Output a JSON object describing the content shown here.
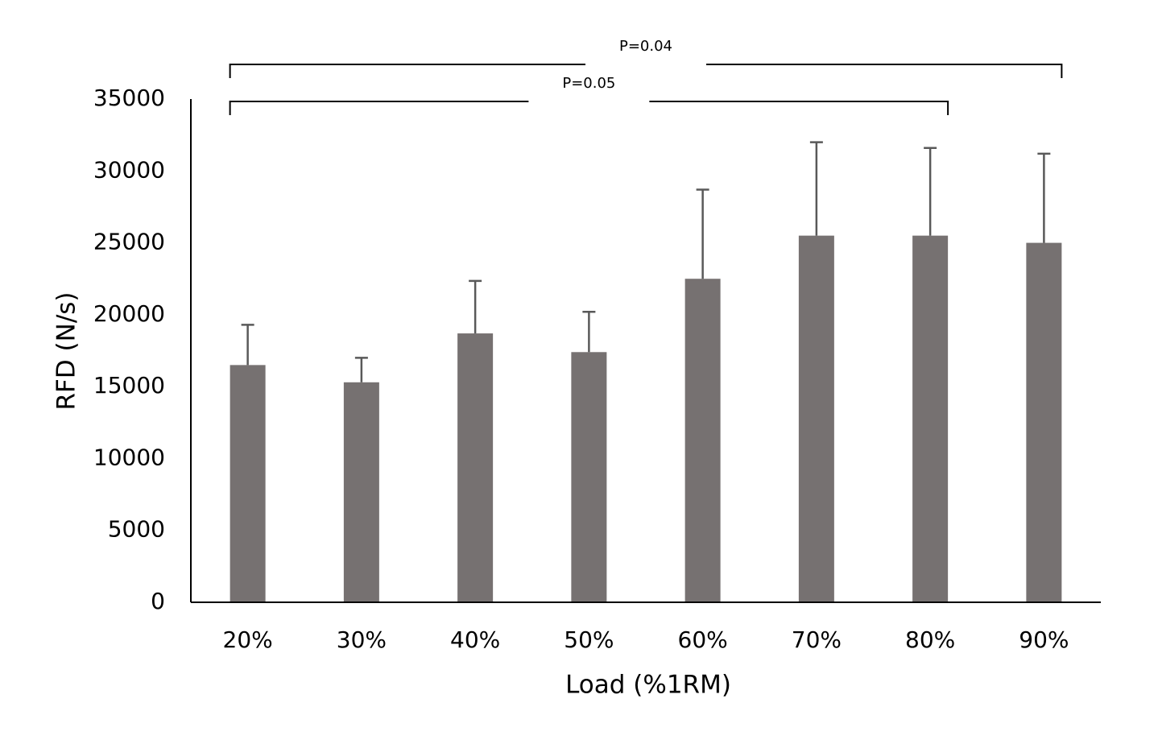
{
  "chart_data": {
    "type": "bar",
    "x_label": "Load (%1RM)",
    "y_label": "RFD (N/s)",
    "categories": [
      "20%",
      "30%",
      "40%",
      "50%",
      "60%",
      "70%",
      "80%",
      "90%"
    ],
    "values": [
      16500,
      15300,
      18700,
      17400,
      22500,
      25500,
      25500,
      25000
    ],
    "errors": [
      2800,
      1700,
      3650,
      2800,
      6200,
      6500,
      6100,
      6200
    ],
    "color": "#767171",
    "error_color": "#595959",
    "ylim": [
      0,
      35000
    ],
    "yticks": [
      0,
      5000,
      10000,
      15000,
      20000,
      25000,
      30000,
      35000
    ],
    "grid": false,
    "annotations": [
      {
        "text": "P=0.04",
        "from": "20%",
        "to": "90%"
      },
      {
        "text": "P=0.05",
        "from": "20%",
        "to": "80%"
      }
    ]
  }
}
